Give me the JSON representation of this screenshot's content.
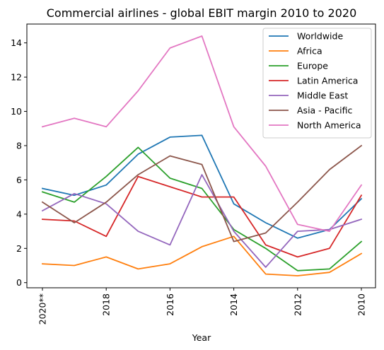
{
  "chart_data": {
    "type": "line",
    "title": "Commercial airlines - global EBIT margin 2010 to 2020",
    "xlabel": "Year",
    "ylabel": "",
    "x": [
      "2020**",
      "2019",
      "2018",
      "2017",
      "2016",
      "2015",
      "2014",
      "2013",
      "2012",
      "2011",
      "2010"
    ],
    "x_tick_labels_shown": [
      "2020**",
      "2018",
      "2016",
      "2014",
      "2012",
      "2010"
    ],
    "y_ticks": [
      0,
      2,
      4,
      6,
      8,
      10,
      12,
      14
    ],
    "ylim": [
      -0.3,
      15.1
    ],
    "legend_position": "top-right",
    "grid": false,
    "series": [
      {
        "name": "Worldwide",
        "color": "#1f77b4",
        "values": [
          5.5,
          5.1,
          5.7,
          7.5,
          8.5,
          8.6,
          4.6,
          3.5,
          2.6,
          3.1,
          4.9
        ]
      },
      {
        "name": "Africa",
        "color": "#ff7f0e",
        "values": [
          1.1,
          1.0,
          1.5,
          0.8,
          1.1,
          2.1,
          2.7,
          0.5,
          0.4,
          0.6,
          1.7
        ]
      },
      {
        "name": "Europe",
        "color": "#2ca02c",
        "values": [
          5.3,
          4.7,
          6.2,
          7.9,
          6.1,
          5.5,
          3.1,
          2.0,
          0.7,
          0.8,
          2.4
        ]
      },
      {
        "name": "Latin America",
        "color": "#d62728",
        "values": [
          3.7,
          3.6,
          2.7,
          6.2,
          5.6,
          5.0,
          5.0,
          2.2,
          1.5,
          2.0,
          5.1
        ]
      },
      {
        "name": "Middle East",
        "color": "#9467bd",
        "values": [
          4.2,
          5.2,
          4.6,
          3.0,
          2.2,
          6.3,
          3.0,
          0.9,
          3.0,
          3.1,
          3.7
        ]
      },
      {
        "name": "Asia - Pacific",
        "color": "#8c564b",
        "values": [
          4.7,
          3.5,
          4.7,
          6.3,
          7.4,
          6.9,
          2.4,
          2.9,
          4.7,
          6.6,
          8.0
        ]
      },
      {
        "name": "North America",
        "color": "#e377c2",
        "values": [
          9.1,
          9.6,
          9.1,
          11.2,
          13.7,
          14.4,
          9.1,
          6.8,
          3.4,
          3.0,
          5.7
        ]
      }
    ]
  }
}
